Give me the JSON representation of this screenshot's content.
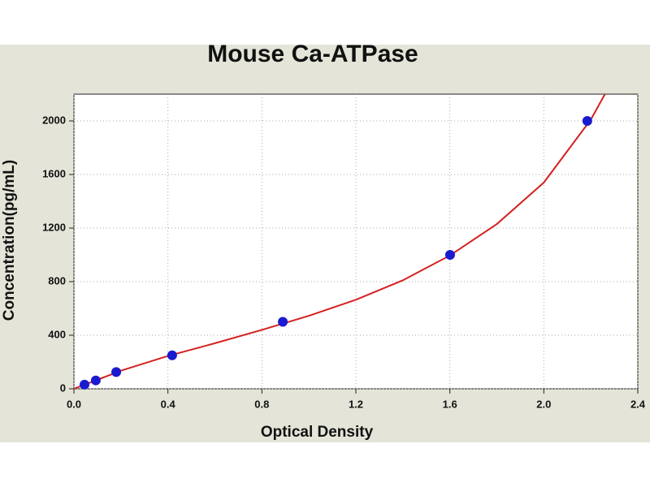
{
  "chart_data": {
    "type": "scatter",
    "title": "Mouse Ca-ATPase",
    "xlabel": "Optical Density",
    "ylabel": "Concentration(pg/mL)",
    "xlim": [
      0,
      2.4
    ],
    "ylim": [
      0,
      2200
    ],
    "xticks": [
      {
        "value": 0,
        "label": "0.0"
      },
      0.4,
      0.8,
      1.2,
      1.6,
      {
        "value": 2,
        "label": "2.0"
      },
      2.4
    ],
    "yticks": [
      0,
      400,
      800,
      1200,
      1600,
      2000
    ],
    "grid": true,
    "series": [
      {
        "mode": "line",
        "color": "#d42020",
        "x": [
          0,
          0.2,
          0.4,
          0.6,
          0.8,
          1.0,
          1.2,
          1.4,
          1.6,
          1.8,
          2.0,
          2.2,
          2.26
        ],
        "values": [
          0,
          135,
          245,
          340,
          440,
          545,
          665,
          810,
          995,
          1230,
          1540,
          2010,
          2200
        ]
      },
      {
        "mode": "markers",
        "color": "#1a1ad0",
        "x": [
          0.045,
          0.093,
          0.18,
          0.418,
          0.889,
          1.601,
          2.185
        ],
        "values": [
          31.25,
          62.5,
          125,
          250,
          500,
          1000,
          2000
        ]
      }
    ]
  }
}
